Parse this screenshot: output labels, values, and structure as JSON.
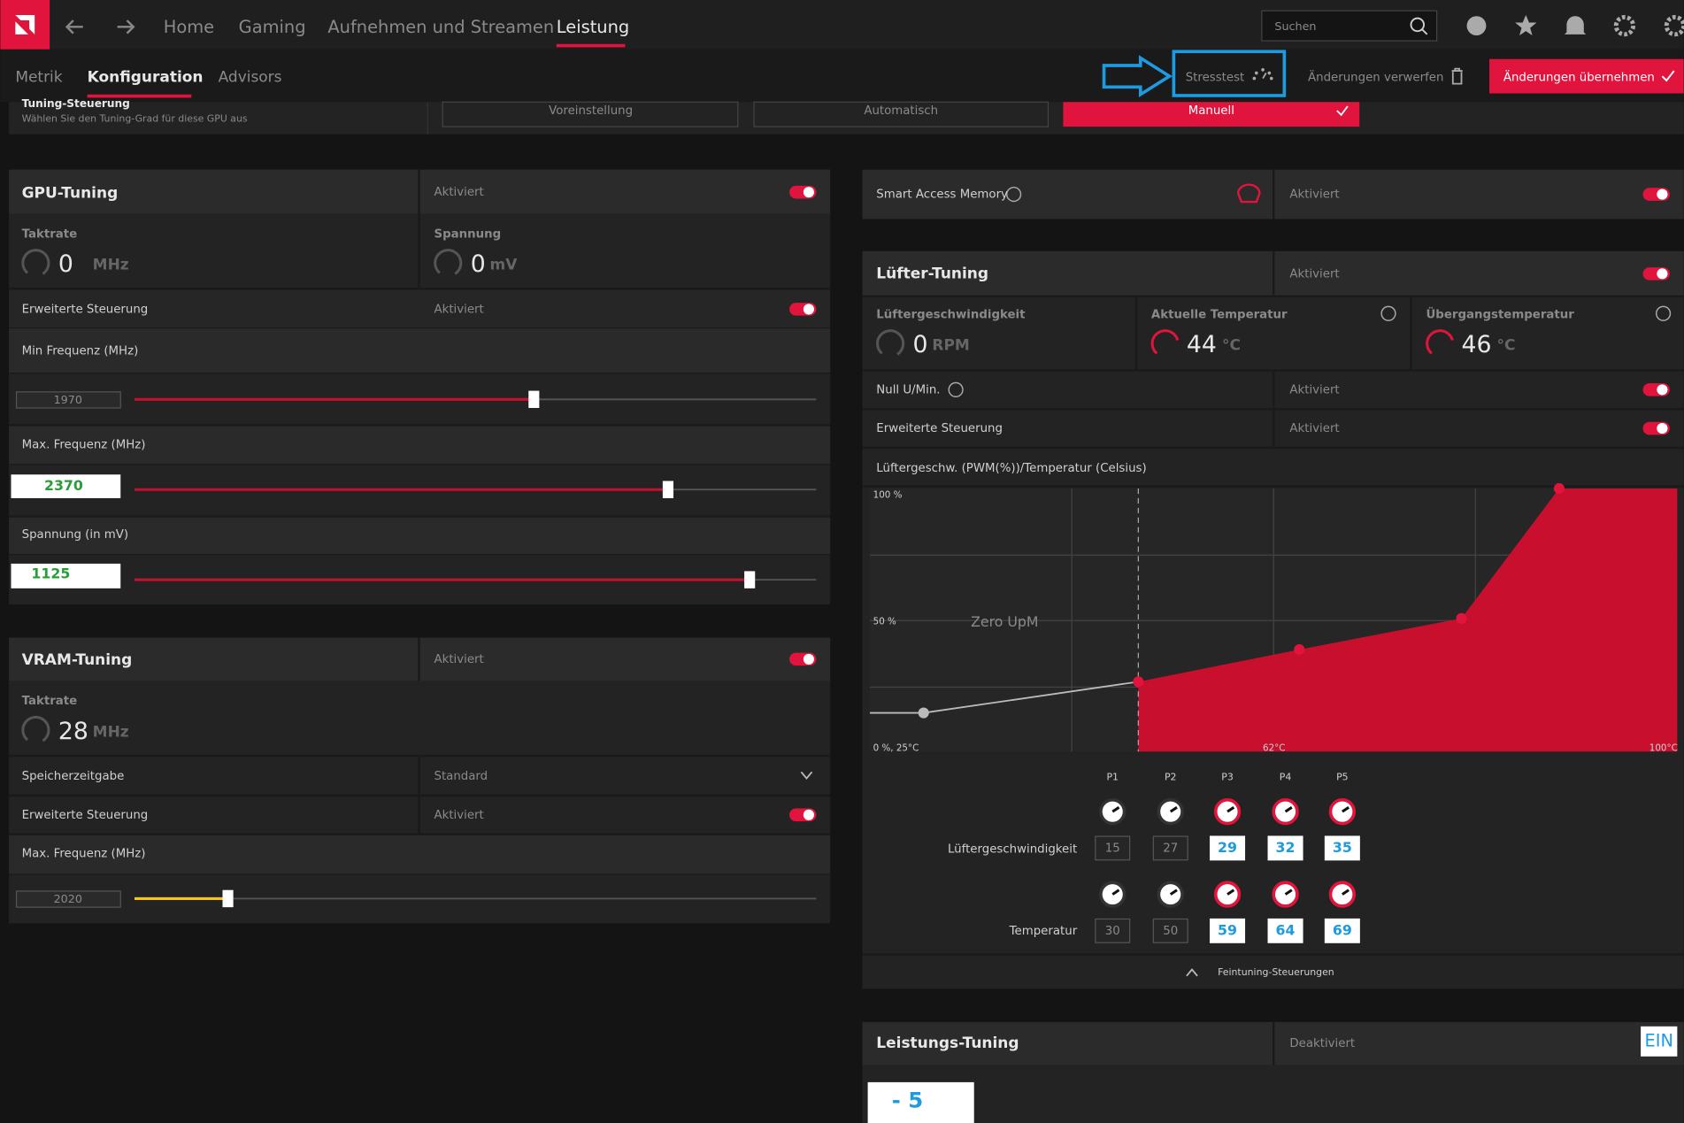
{
  "top_nav": {
    "tabs": [
      "Home",
      "Gaming",
      "Aufnehmen und Streamen",
      "Leistung"
    ],
    "search_placeholder": "Suchen"
  },
  "sub_nav": {
    "tabs": [
      "Metrik",
      "Konfiguration",
      "Advisors"
    ],
    "stresstest": "Stresstest",
    "discard": "Änderungen verwerfen",
    "apply": "Änderungen übernehmen"
  },
  "tuning_control": {
    "title": "Tuning-Steuerung",
    "description": "Wählen Sie den Tuning-Grad für diese GPU aus",
    "options": [
      "Voreinstellung",
      "Automatisch",
      "Manuell"
    ]
  },
  "gpu_tuning": {
    "title": "GPU-Tuning",
    "status": "Aktiviert",
    "clock": {
      "label": "Taktrate",
      "value": 0,
      "unit": "MHz"
    },
    "voltage": {
      "label": "Spannung",
      "value": 0,
      "unit": "mV"
    },
    "advanced": {
      "label": "Erweiterte Steuerung",
      "status": "Aktiviert"
    },
    "min_freq": {
      "label": "Min Frequenz (MHz)",
      "value": 1970
    },
    "max_freq": {
      "label": "Max. Frequenz (MHz)",
      "value": 2370
    },
    "voltage_setting": {
      "label": "Spannung (in mV)",
      "value": 1125
    }
  },
  "vram_tuning": {
    "title": "VRAM-Tuning",
    "status": "Aktiviert",
    "clock": {
      "label": "Taktrate",
      "value": 28,
      "unit": "MHz"
    },
    "memory_timing": {
      "label": "Speicherzeitgabe",
      "value": "Standard"
    },
    "advanced": {
      "label": "Erweiterte Steuerung",
      "status": "Aktiviert"
    },
    "max_freq": {
      "label": "Max. Frequenz (MHz)",
      "value": 2020
    }
  },
  "smart_access_memory": {
    "label": "Smart Access Memory",
    "status": "Aktiviert"
  },
  "fan_tuning": {
    "title": "Lüfter-Tuning",
    "status": "Aktiviert",
    "fan_speed": {
      "label": "Lüftergeschwindigkeit",
      "value": 0,
      "unit": "RPM"
    },
    "current_temp": {
      "label": "Aktuelle Temperatur",
      "value": 44,
      "unit": "°C"
    },
    "junction_temp": {
      "label": "Übergangstemperatur",
      "value": 46,
      "unit": "°C"
    },
    "zero_rpm": {
      "label": "Null U/Min.",
      "status": "Aktiviert"
    },
    "advanced": {
      "label": "Erweiterte Steuerung",
      "status": "Aktiviert"
    },
    "curve": {
      "title": "Lüftergeschw. (PWM(%))/Temperatur (Celsius)",
      "label_top": "100 %",
      "label_mid": "50 %",
      "label_origin": "0 %, 25°C",
      "label_x_mid": "62°C",
      "label_x_end": "100°C",
      "zero_rpm_label": "Zero UpM"
    },
    "points": [
      "P1",
      "P2",
      "P3",
      "P4",
      "P5"
    ],
    "speed_label": "Lüftergeschwindigkeit",
    "speeds": [
      15,
      27,
      29,
      32,
      35
    ],
    "temp_label": "Temperatur",
    "temps": [
      30,
      50,
      59,
      64,
      69
    ],
    "fine_tuning": "Feintuning-Steuerungen"
  },
  "power_tuning": {
    "title": "Leistungs-Tuning",
    "status": "Deaktiviert",
    "toggle": "EIN",
    "value": "- 5"
  }
}
